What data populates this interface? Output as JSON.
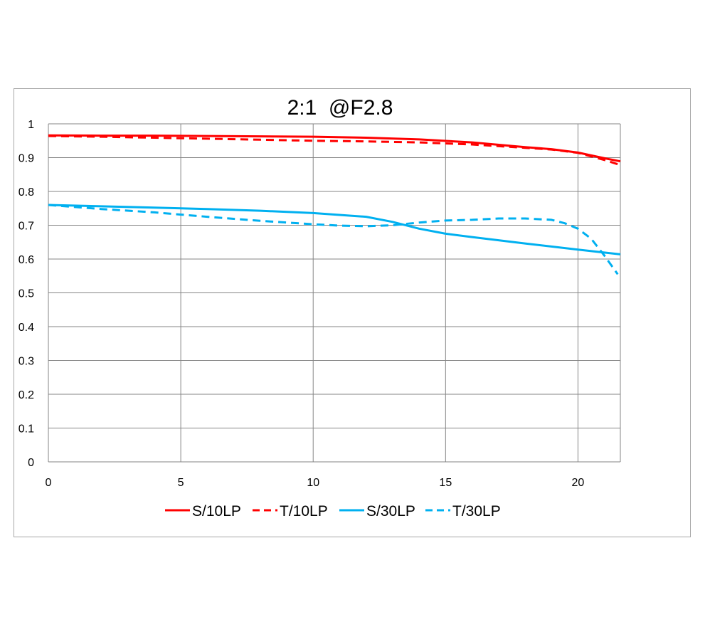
{
  "chart_data": {
    "type": "line",
    "title": "2:1  @F2.8",
    "xlabel": "",
    "ylabel": "",
    "xlim": [
      0,
      21.6
    ],
    "ylim": [
      0,
      1
    ],
    "x_ticks": [
      0,
      5,
      10,
      15,
      20
    ],
    "y_ticks": [
      0,
      0.1,
      0.2,
      0.3,
      0.4,
      0.5,
      0.6,
      0.7,
      0.8,
      0.9,
      1
    ],
    "grid": true,
    "legend_position": "bottom",
    "series": [
      {
        "name": "S/10LP",
        "color": "#ff0000",
        "dash": "solid",
        "x": [
          0,
          2,
          4,
          6,
          8,
          10,
          12,
          14,
          16,
          18,
          19,
          20,
          21,
          21.6
        ],
        "y": [
          0.966,
          0.965,
          0.965,
          0.964,
          0.963,
          0.962,
          0.959,
          0.954,
          0.945,
          0.931,
          0.925,
          0.915,
          0.898,
          0.889
        ]
      },
      {
        "name": "T/10LP",
        "color": "#ff0000",
        "dash": "dashed",
        "x": [
          0,
          2,
          4,
          6,
          8,
          10,
          12,
          14,
          16,
          18,
          19,
          20,
          21,
          21.6
        ],
        "y": [
          0.964,
          0.962,
          0.959,
          0.956,
          0.953,
          0.95,
          0.948,
          0.945,
          0.939,
          0.929,
          0.924,
          0.914,
          0.893,
          0.878
        ]
      },
      {
        "name": "S/30LP",
        "color": "#00b0f0",
        "dash": "solid",
        "x": [
          0,
          2,
          4,
          6,
          8,
          10,
          12,
          13,
          14,
          15,
          16,
          18,
          20,
          21.6
        ],
        "y": [
          0.76,
          0.756,
          0.752,
          0.748,
          0.743,
          0.736,
          0.725,
          0.71,
          0.69,
          0.675,
          0.665,
          0.646,
          0.628,
          0.614
        ]
      },
      {
        "name": "T/30LP",
        "color": "#00b0f0",
        "dash": "dashed",
        "x": [
          0,
          2,
          4,
          6,
          8,
          10,
          11,
          12,
          13,
          14,
          15,
          16,
          17,
          18,
          19,
          19.5,
          20,
          20.5,
          21,
          21.5
        ],
        "y": [
          0.76,
          0.748,
          0.738,
          0.725,
          0.713,
          0.703,
          0.699,
          0.697,
          0.7,
          0.708,
          0.714,
          0.716,
          0.72,
          0.72,
          0.716,
          0.706,
          0.69,
          0.66,
          0.61,
          0.555
        ]
      }
    ]
  }
}
